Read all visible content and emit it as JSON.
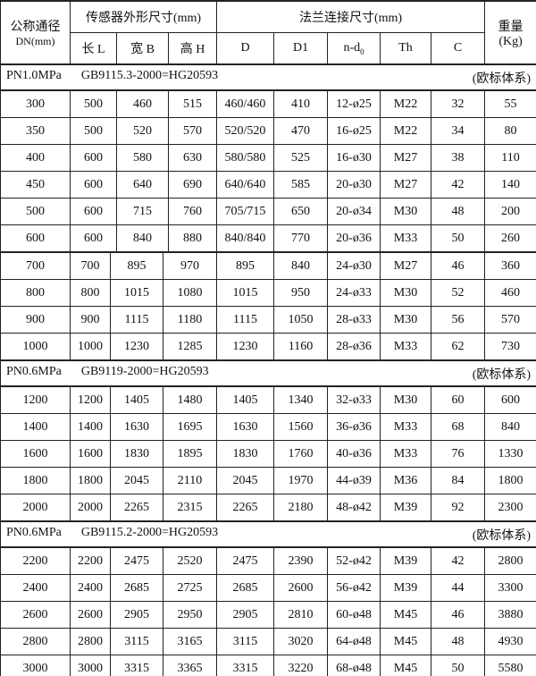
{
  "header": {
    "dn": "公称通径",
    "dn_unit": "DN(mm)",
    "sensor": "传感器外形尺寸(mm)",
    "flange": "法兰连接尺寸(mm)",
    "weight": "重量",
    "weight_unit": "(Kg)",
    "cols": [
      "长 L",
      "宽 B",
      "高 H",
      "D",
      "D1",
      "n-d",
      "Th",
      "C"
    ],
    "nd_sub": "0"
  },
  "sections": [
    {
      "pressure": "PN1.0MPa",
      "standard": "GB9115.3-2000=HG20593",
      "system": "(欧标体系)",
      "rows": [
        [
          "300",
          "500",
          "460",
          "515",
          "460/460",
          "410",
          "12-ø25",
          "M22",
          "32",
          "55"
        ],
        [
          "350",
          "500",
          "520",
          "570",
          "520/520",
          "470",
          "16-ø25",
          "M22",
          "34",
          "80"
        ],
        [
          "400",
          "600",
          "580",
          "630",
          "580/580",
          "525",
          "16-ø30",
          "M27",
          "38",
          "110"
        ],
        [
          "450",
          "600",
          "640",
          "690",
          "640/640",
          "585",
          "20-ø30",
          "M27",
          "42",
          "140"
        ],
        [
          "500",
          "600",
          "715",
          "760",
          "705/715",
          "650",
          "20-ø34",
          "M30",
          "48",
          "200"
        ],
        [
          "600",
          "600",
          "840",
          "880",
          "840/840",
          "770",
          "20-ø36",
          "M33",
          "50",
          "260"
        ],
        [
          "700",
          "700",
          "895",
          "970",
          "895",
          "840",
          "24-ø30",
          "M27",
          "46",
          "360"
        ],
        [
          "800",
          "800",
          "1015",
          "1080",
          "1015",
          "950",
          "24-ø33",
          "M30",
          "52",
          "460"
        ],
        [
          "900",
          "900",
          "1115",
          "1180",
          "1115",
          "1050",
          "28-ø33",
          "M30",
          "56",
          "570"
        ],
        [
          "1000",
          "1000",
          "1230",
          "1285",
          "1230",
          "1160",
          "28-ø36",
          "M33",
          "62",
          "730"
        ]
      ]
    },
    {
      "pressure": "PN0.6MPa",
      "standard": "GB9119-2000=HG20593",
      "system": "(欧标体系)",
      "rows": [
        [
          "1200",
          "1200",
          "1405",
          "1480",
          "1405",
          "1340",
          "32-ø33",
          "M30",
          "60",
          "600"
        ],
        [
          "1400",
          "1400",
          "1630",
          "1695",
          "1630",
          "1560",
          "36-ø36",
          "M33",
          "68",
          "840"
        ],
        [
          "1600",
          "1600",
          "1830",
          "1895",
          "1830",
          "1760",
          "40-ø36",
          "M33",
          "76",
          "1330"
        ],
        [
          "1800",
          "1800",
          "2045",
          "2110",
          "2045",
          "1970",
          "44-ø39",
          "M36",
          "84",
          "1800"
        ],
        [
          "2000",
          "2000",
          "2265",
          "2315",
          "2265",
          "2180",
          "48-ø42",
          "M39",
          "92",
          "2300"
        ]
      ]
    },
    {
      "pressure": "PN0.6MPa",
      "standard": "GB9115.2-2000=HG20593",
      "system": "(欧标体系)",
      "rows": [
        [
          "2200",
          "2200",
          "2475",
          "2520",
          "2475",
          "2390",
          "52-ø42",
          "M39",
          "42",
          "2800"
        ],
        [
          "2400",
          "2400",
          "2685",
          "2725",
          "2685",
          "2600",
          "56-ø42",
          "M39",
          "44",
          "3300"
        ],
        [
          "2600",
          "2600",
          "2905",
          "2950",
          "2905",
          "2810",
          "60-ø48",
          "M45",
          "46",
          "3880"
        ],
        [
          "2800",
          "2800",
          "3115",
          "3165",
          "3115",
          "3020",
          "64-ø48",
          "M45",
          "48",
          "4930"
        ],
        [
          "3000",
          "3000",
          "3315",
          "3365",
          "3315",
          "3220",
          "68-ø48",
          "M45",
          "50",
          "5580"
        ]
      ]
    }
  ]
}
